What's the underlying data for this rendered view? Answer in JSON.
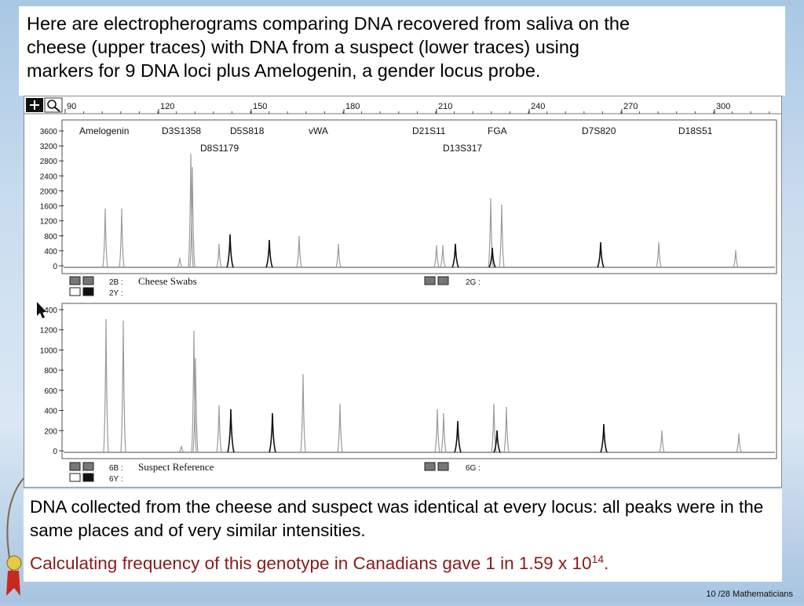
{
  "intro": {
    "line1": "Here are electropherograms comparing DNA recovered from saliva on the",
    "line2": "cheese (upper traces) with DNA from a suspect (lower traces) using",
    "line3": "markers for 9 DNA loci plus Amelogenin, a gender locus probe."
  },
  "toolbar": {
    "scale_ticks": [
      "90",
      "120",
      "150",
      "180",
      "210",
      "240",
      "270",
      "300"
    ],
    "add_icon": "plus-icon",
    "zoom_icon": "magnifier-icon"
  },
  "top_panel": {
    "y_ticks": [
      "3600",
      "3200",
      "2800",
      "2400",
      "2000",
      "1600",
      "1200",
      "800",
      "400",
      "0"
    ],
    "loci": {
      "amelogenin": "Amelogenin",
      "d3s1358": "D3S1358",
      "d5s818": "D5S818",
      "vwa": "vWA",
      "d21s11": "D21S11",
      "fga": "FGA",
      "d7s820": "D7S820",
      "d18s51": "D18S51",
      "d8s1179": "D8S1179",
      "d13s317": "D13S317"
    },
    "lane_a_code": "2B :",
    "lane_a_name": "Cheese Swabs",
    "lane_b_code": "2Y :",
    "lane_c_code": "2G :"
  },
  "bottom_panel": {
    "y_ticks": [
      "1400",
      "1200",
      "1000",
      "800",
      "600",
      "400",
      "200",
      "0"
    ],
    "lane_a_code": "6B :",
    "lane_a_name": "Suspect Reference",
    "lane_b_code": "6Y :",
    "lane_c_code": "6G :"
  },
  "caption": {
    "line1": "DNA collected from the cheese and suspect was identical at every locus: all peaks were in the same places and of very similar intensities.",
    "line2_text": "Calculating frequency of this genotype in Canadians gave 1 in 1.59 x 10",
    "line2_exp": "14",
    "line2_end": "."
  },
  "footer": {
    "page": "10 /28 Mathematicians"
  },
  "colors": {
    "background": "#c9ddef",
    "highlight_red": "#8b1a1a",
    "trace_dark": "#111111",
    "trace_light": "#9a9a9a"
  }
}
